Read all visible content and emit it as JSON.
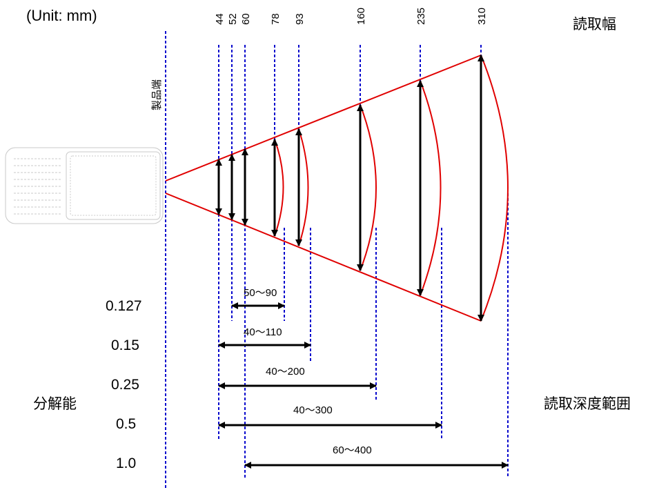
{
  "unit_label": "(Unit: mm)",
  "reading_width_title": "読取幅",
  "product_edge_label": "製品端",
  "resolution_title": "分解能",
  "depth_of_field_title": "読取深度範囲",
  "width_ticks": [
    "44",
    "52",
    "60",
    "78",
    "93",
    "160",
    "235",
    "310"
  ],
  "depth_ranges": [
    {
      "resolution": "0.127",
      "range": "50〜90"
    },
    {
      "resolution": "0.15",
      "range": "40〜110"
    },
    {
      "resolution": "0.25",
      "range": "40〜200"
    },
    {
      "resolution": "0.5",
      "range": "40〜300"
    },
    {
      "resolution": "1.0",
      "range": "60〜400"
    }
  ],
  "colors": {
    "guide": "#0000cc",
    "beam": "#e00000",
    "arrow": "#000000",
    "device": "#c8c8c8"
  }
}
